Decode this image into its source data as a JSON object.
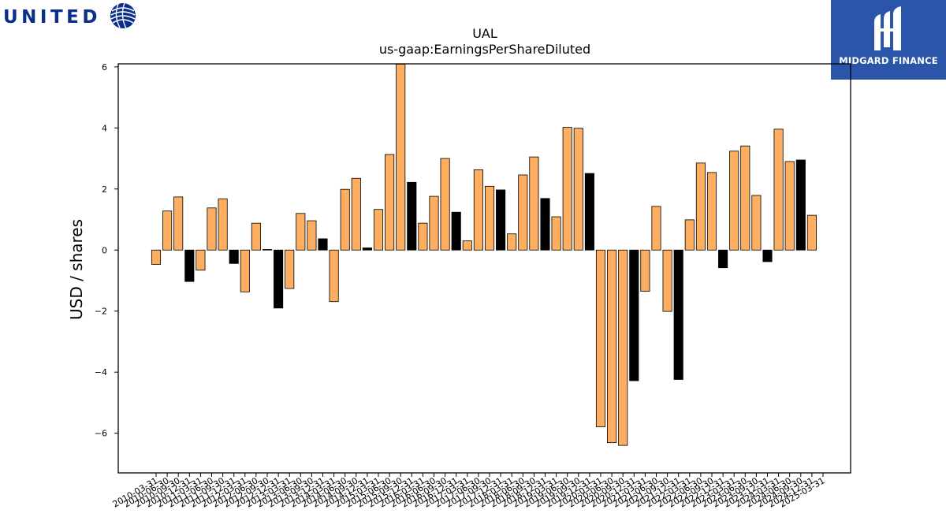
{
  "logos": {
    "left_text": "UNITED",
    "right_text": "MIDGARD FINANCE"
  },
  "colors": {
    "positive_bar": "#fdae61",
    "highlight_bar": "#000000",
    "bar_edge": "#000000",
    "united_blue": "#0b2d8c",
    "midgard_blue": "#2a55a8"
  },
  "chart_data": {
    "type": "bar",
    "title": "UAL",
    "subtitle": "us-gaap:EarningsPerShareDiluted",
    "xlabel": "",
    "ylabel": "USD / shares",
    "ylim": [
      -7.3,
      6.1
    ],
    "yticks": [
      -6,
      -4,
      -2,
      0,
      2,
      4,
      6
    ],
    "ytick_labels": [
      "−6",
      "−4",
      "−2",
      "0",
      "2",
      "4",
      "6"
    ],
    "grid": false,
    "categories": [
      "2010-03-31",
      "2010-06-30",
      "2010-09-30",
      "2010-12-31",
      "2011-03-31",
      "2011-06-30",
      "2011-09-30",
      "2011-12-31",
      "2012-03-31",
      "2012-06-30",
      "2012-09-30",
      "2012-12-31",
      "2013-03-31",
      "2013-06-30",
      "2013-09-30",
      "2013-12-31",
      "2014-03-31",
      "2014-06-30",
      "2014-09-30",
      "2014-12-31",
      "2015-03-31",
      "2015-06-30",
      "2015-09-30",
      "2015-12-31",
      "2016-03-31",
      "2016-06-30",
      "2016-09-30",
      "2016-12-31",
      "2017-03-31",
      "2017-06-30",
      "2017-09-30",
      "2017-12-31",
      "2018-03-31",
      "2018-06-30",
      "2018-09-30",
      "2018-12-31",
      "2019-03-31",
      "2019-06-30",
      "2019-09-30",
      "2019-12-31",
      "2020-03-31",
      "2020-06-30",
      "2020-09-30",
      "2020-12-31",
      "2021-03-31",
      "2021-06-30",
      "2021-09-30",
      "2021-12-31",
      "2022-03-31",
      "2022-06-30",
      "2022-09-30",
      "2022-12-31",
      "2023-03-31",
      "2023-06-30",
      "2023-09-30",
      "2023-12-31",
      "2024-03-31",
      "2024-06-30",
      "2024-09-30",
      "2024-12-31",
      "2025-03-31"
    ],
    "values": [
      -0.47,
      1.28,
      1.74,
      -1.03,
      -0.66,
      1.38,
      1.68,
      -0.44,
      -1.37,
      0.88,
      0.02,
      -1.9,
      -1.26,
      1.2,
      0.96,
      0.37,
      -1.69,
      1.99,
      2.35,
      0.07,
      1.33,
      3.13,
      6.09,
      2.22,
      0.88,
      1.76,
      3.0,
      1.24,
      0.3,
      2.63,
      2.09,
      1.97,
      0.53,
      2.46,
      3.05,
      1.69,
      1.09,
      4.02,
      3.99,
      2.51,
      -5.79,
      -6.31,
      -6.4,
      -4.28,
      -1.35,
      1.43,
      -2.01,
      -4.24,
      0.99,
      2.85,
      2.54,
      -0.58,
      3.24,
      3.41,
      1.79,
      -0.38,
      3.96,
      2.9,
      2.95,
      1.14,
      0.0
    ],
    "highlight": [
      false,
      false,
      false,
      true,
      false,
      false,
      false,
      true,
      false,
      false,
      true,
      true,
      false,
      false,
      false,
      true,
      false,
      false,
      false,
      true,
      false,
      false,
      false,
      true,
      false,
      false,
      false,
      true,
      false,
      false,
      false,
      true,
      false,
      false,
      false,
      true,
      false,
      false,
      false,
      true,
      false,
      false,
      false,
      true,
      false,
      false,
      false,
      true,
      false,
      false,
      false,
      true,
      false,
      false,
      false,
      true,
      false,
      false,
      true,
      false,
      false
    ]
  }
}
